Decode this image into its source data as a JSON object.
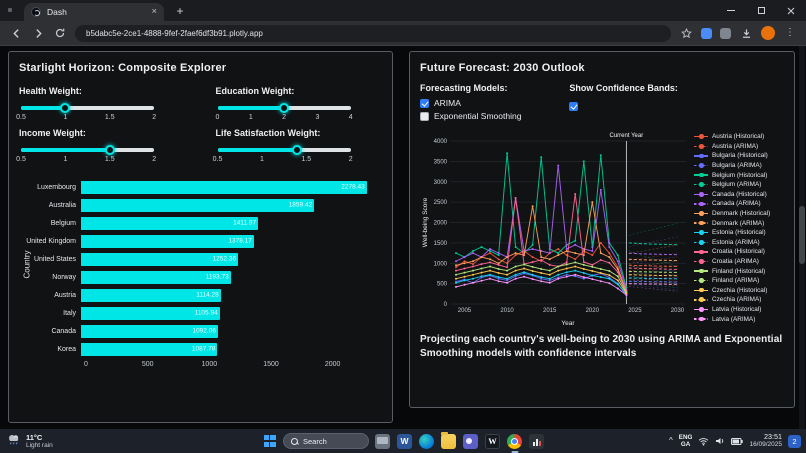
{
  "browser": {
    "tab_title": "Dash",
    "url": "b5dabc5e-2ce1-4888-9fef-2faef6df3b91.plotly.app",
    "glyphs": {
      "tab_close": "×",
      "new_tab": "+",
      "menu": "⋮",
      "tray_chevron": "^"
    }
  },
  "left_panel": {
    "title": "Starlight Horizon: Composite Explorer",
    "sliders": [
      {
        "label": "Health Weight:",
        "min": 0.5,
        "max": 2,
        "value": 1,
        "marks": [
          0.5,
          1,
          1.5,
          2
        ]
      },
      {
        "label": "Education Weight:",
        "min": 0,
        "max": 4,
        "value": 2,
        "marks": [
          0,
          1,
          2,
          3,
          4
        ]
      },
      {
        "label": "Income Weight:",
        "min": 0.5,
        "max": 2,
        "value": 1.5,
        "marks": [
          0.5,
          1,
          1.5,
          2
        ]
      },
      {
        "label": "Life Satisfaction Weight:",
        "min": 0.5,
        "max": 2,
        "value": 1.4,
        "marks": [
          0.5,
          1,
          1.5,
          2
        ]
      }
    ]
  },
  "right_panel": {
    "title": "Future Forecast: 2030 Outlook",
    "models_label": "Forecasting Models:",
    "models": [
      {
        "label": "ARIMA",
        "checked": true
      },
      {
        "label": "Exponential Smoothing",
        "checked": false
      }
    ],
    "confidence_label": "Show Confidence Bands:",
    "confidence_checked": true,
    "caption": "Projecting each country's well-being to 2030 using ARIMA and Exponential Smoothing models with confidence intervals"
  },
  "chart_data": [
    {
      "type": "bar",
      "orientation": "horizontal",
      "ylabel": "Country",
      "categories": [
        "Luxembourg",
        "Australia",
        "Belgium",
        "United Kingdom",
        "United States",
        "Norway",
        "Austria",
        "Italy",
        "Canada",
        "Korea"
      ],
      "values": [
        2278.43,
        1859.42,
        1411.97,
        1378.17,
        1252.36,
        1193.73,
        1114.28,
        1105.94,
        1092.06,
        1087.78
      ],
      "xticks": [
        0,
        500,
        1000,
        1500,
        2000
      ],
      "xlim": [
        0,
        2400
      ],
      "bar_color": "#00e5e5"
    },
    {
      "type": "line",
      "xlabel": "Year",
      "ylabel": "Well-being Score",
      "ylim": [
        0,
        4000
      ],
      "yticks": [
        0,
        500,
        1000,
        1500,
        2000,
        2500,
        3000,
        3500,
        4000
      ],
      "xticks": [
        2005,
        2010,
        2015,
        2020,
        2025,
        2030
      ],
      "current_year": 2024,
      "current_year_label": "Current Year",
      "x_hist": [
        2004,
        2005,
        2006,
        2007,
        2008,
        2009,
        2010,
        2011,
        2012,
        2013,
        2014,
        2015,
        2016,
        2017,
        2018,
        2019,
        2020,
        2021,
        2022,
        2023,
        2024
      ],
      "x_forecast": [
        2024.3,
        2025,
        2026,
        2027,
        2028,
        2029,
        2030
      ],
      "series": [
        {
          "name": "Austria",
          "color": "#EF553B",
          "historical": [
            900,
            1050,
            980,
            1150,
            1250,
            1100,
            1000,
            1200,
            1300,
            1150,
            1050,
            1250,
            1350,
            1200,
            1100,
            1300,
            1200,
            1500,
            1250,
            900,
            300
          ],
          "forecast": [
            950,
            945,
            940,
            935,
            930,
            925,
            920
          ]
        },
        {
          "name": "Bulgaria",
          "color": "#636EFA",
          "historical": [
            550,
            600,
            520,
            650,
            700,
            620,
            580,
            680,
            750,
            700,
            620,
            580,
            650,
            720,
            680,
            620,
            700,
            750,
            650,
            500,
            200
          ],
          "forecast": [
            560,
            555,
            550,
            548,
            545,
            543,
            540
          ]
        },
        {
          "name": "Belgium",
          "color": "#00CC96",
          "historical": [
            1250,
            1150,
            1300,
            1400,
            1300,
            1200,
            3700,
            1400,
            1250,
            1450,
            3600,
            1350,
            1250,
            1450,
            1550,
            3500,
            1400,
            3650,
            1500,
            1200,
            400
          ],
          "forecast": [
            1500,
            1490,
            1480,
            1470,
            1465,
            1460,
            1455
          ]
        },
        {
          "name": "Canada",
          "color": "#AB63FA",
          "historical": [
            1050,
            1150,
            1250,
            1150,
            1350,
            1250,
            1150,
            2600,
            1300,
            1350,
            1300,
            1250,
            3400,
            1350,
            1450,
            1350,
            1300,
            2800,
            1400,
            1050,
            350
          ],
          "forecast": [
            1250,
            1240,
            1230,
            1225,
            1220,
            1215,
            1210
          ]
        },
        {
          "name": "Denmark",
          "color": "#FFA15A",
          "historical": [
            950,
            1000,
            1050,
            1150,
            1100,
            1000,
            1150,
            1250,
            1200,
            2400,
            1150,
            1100,
            1200,
            1300,
            1250,
            1200,
            2500,
            1250,
            1150,
            850,
            320
          ],
          "forecast": [
            1100,
            1090,
            1085,
            1080,
            1075,
            1070,
            1065
          ]
        },
        {
          "name": "Estonia",
          "color": "#19D3F3",
          "historical": [
            520,
            580,
            620,
            680,
            720,
            660,
            620,
            720,
            780,
            720,
            660,
            620,
            720,
            780,
            820,
            760,
            700,
            660,
            620,
            480,
            250
          ],
          "forecast": [
            640,
            635,
            630,
            628,
            625,
            622,
            620
          ]
        },
        {
          "name": "Croatia",
          "color": "#FF6692",
          "historical": [
            820,
            870,
            920,
            980,
            1020,
            960,
            900,
            2600,
            980,
            1030,
            1080,
            960,
            920,
            1020,
            2700,
            1030,
            960,
            1080,
            1010,
            780,
            300
          ],
          "forecast": [
            880,
            875,
            870,
            865,
            860,
            855,
            850
          ]
        },
        {
          "name": "Finland",
          "color": "#B6E880",
          "historical": [
            720,
            770,
            820,
            870,
            920,
            860,
            820,
            920,
            970,
            910,
            860,
            820,
            920,
            970,
            1020,
            960,
            910,
            860,
            810,
            680,
            280
          ],
          "forecast": [
            800,
            795,
            790,
            785,
            780,
            778,
            775
          ]
        },
        {
          "name": "Czechia",
          "color": "#FECB52",
          "historical": [
            620,
            670,
            720,
            770,
            820,
            760,
            720,
            820,
            870,
            810,
            760,
            720,
            820,
            870,
            920,
            860,
            810,
            760,
            710,
            580,
            260
          ],
          "forecast": [
            720,
            715,
            710,
            705,
            700,
            698,
            695
          ]
        },
        {
          "name": "Latvia",
          "color": "#FF97FF",
          "historical": [
            420,
            470,
            520,
            570,
            620,
            560,
            520,
            620,
            670,
            610,
            560,
            520,
            620,
            670,
            720,
            660,
            610,
            560,
            510,
            380,
            220
          ],
          "forecast": [
            500,
            496,
            492,
            490,
            488,
            486,
            484
          ]
        }
      ],
      "legend": [
        {
          "label": "Austria (Historical)",
          "color": "#EF553B",
          "dash": false
        },
        {
          "label": "Austria (ARIMA)",
          "color": "#EF553B",
          "dash": true
        },
        {
          "label": "Bulgaria (Historical)",
          "color": "#636EFA",
          "dash": false
        },
        {
          "label": "Bulgaria (ARIMA)",
          "color": "#636EFA",
          "dash": true
        },
        {
          "label": "Belgium (Historical)",
          "color": "#00CC96",
          "dash": false
        },
        {
          "label": "Belgium (ARIMA)",
          "color": "#00CC96",
          "dash": true
        },
        {
          "label": "Canada (Historical)",
          "color": "#AB63FA",
          "dash": false
        },
        {
          "label": "Canada (ARIMA)",
          "color": "#AB63FA",
          "dash": true
        },
        {
          "label": "Denmark (Historical)",
          "color": "#FFA15A",
          "dash": false
        },
        {
          "label": "Denmark (ARIMA)",
          "color": "#FFA15A",
          "dash": true
        },
        {
          "label": "Estonia (Historical)",
          "color": "#19D3F3",
          "dash": false
        },
        {
          "label": "Estonia (ARIMA)",
          "color": "#19D3F3",
          "dash": true
        },
        {
          "label": "Croatia (Historical)",
          "color": "#FF6692",
          "dash": false
        },
        {
          "label": "Croatia (ARIMA)",
          "color": "#FF6692",
          "dash": true
        },
        {
          "label": "Finland (Historical)",
          "color": "#B6E880",
          "dash": false
        },
        {
          "label": "Finland (ARIMA)",
          "color": "#B6E880",
          "dash": true
        },
        {
          "label": "Czechia (Historical)",
          "color": "#FECB52",
          "dash": false
        },
        {
          "label": "Czechia (ARIMA)",
          "color": "#FECB52",
          "dash": true
        },
        {
          "label": "Latvia (Historical)",
          "color": "#FF97FF",
          "dash": false
        },
        {
          "label": "Latvia (ARIMA)",
          "color": "#FF97FF",
          "dash": true
        }
      ]
    }
  ],
  "taskbar": {
    "weather": {
      "temp": "11°C",
      "condition": "Light rain"
    },
    "search": "Search",
    "glyphs": {
      "word": "W",
      "wiki": "W"
    },
    "tray": {
      "lang1": "ENG",
      "lang2": "GA",
      "time": "23:51",
      "date": "16/09/2025",
      "badge": "2"
    }
  }
}
